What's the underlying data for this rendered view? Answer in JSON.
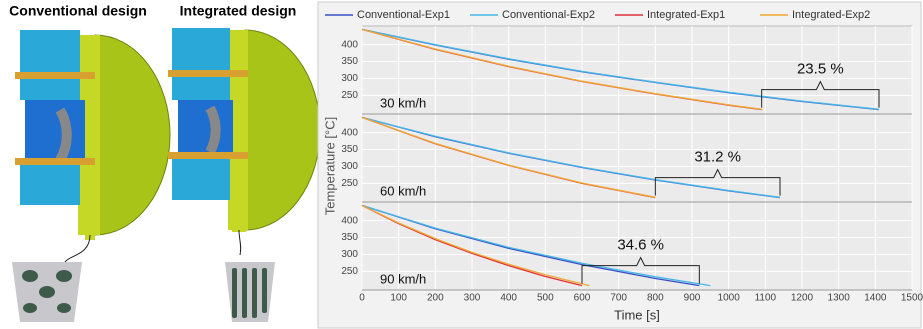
{
  "figure": {
    "titles": [
      "Conventional design",
      "Integrated design"
    ]
  },
  "chart_data": {
    "type": "line",
    "xlabel": "Time [s]",
    "ylabel": "Temperature [°C]",
    "xlim": [
      0,
      1500
    ],
    "xticks": [
      0,
      100,
      200,
      300,
      400,
      500,
      600,
      700,
      800,
      900,
      1000,
      1100,
      1200,
      1300,
      1400,
      1500
    ],
    "ylim": [
      195,
      455
    ],
    "yticks": [
      250,
      300,
      350,
      400
    ],
    "grid": true,
    "series": [
      {
        "name": "Conventional-Exp1",
        "color": "#3a4fc4"
      },
      {
        "name": "Conventional-Exp2",
        "color": "#45b6e8"
      },
      {
        "name": "Integrated-Exp1",
        "color": "#e0303a"
      },
      {
        "name": "Integrated-Exp2",
        "color": "#f0a830"
      }
    ],
    "panels": [
      {
        "label": "30 km/h",
        "annotation": "23.5 %",
        "series": [
          {
            "x": [
              0,
              200,
              400,
              600,
              800,
              1000,
              1200,
              1410
            ],
            "values": [
              445,
              399,
              357,
              320,
              288,
              258,
              232,
              208
            ]
          },
          {
            "x": [
              0,
              200,
              400,
              600,
              800,
              1000,
              1200,
              1410
            ],
            "values": [
              445,
              400,
              358,
              321,
              289,
              259,
              233,
              209
            ]
          },
          {
            "x": [
              0,
              200,
              400,
              600,
              800,
              1000,
              1090
            ],
            "values": [
              445,
              386,
              335,
              291,
              254,
              221,
              208
            ]
          },
          {
            "x": [
              0,
              200,
              400,
              600,
              800,
              1000,
              1090
            ],
            "values": [
              445,
              387,
              336,
              292,
              255,
              222,
              209
            ]
          }
        ]
      },
      {
        "label": "60 km/h",
        "annotation": "31.2 %",
        "series": [
          {
            "x": [
              0,
              200,
              400,
              600,
              800,
              1000,
              1140
            ],
            "values": [
              445,
              388,
              339,
              297,
              260,
              228,
              208
            ]
          },
          {
            "x": [
              0,
              200,
              400,
              600,
              800,
              1000,
              1140
            ],
            "values": [
              445,
              389,
              340,
              298,
              261,
              229,
              209
            ]
          },
          {
            "x": [
              0,
              200,
              400,
              600,
              800
            ],
            "values": [
              445,
              367,
              303,
              250,
              208
            ]
          },
          {
            "x": [
              0,
              200,
              400,
              600,
              800
            ],
            "values": [
              445,
              368,
              304,
              251,
              209
            ]
          }
        ]
      },
      {
        "label": "90 km/h",
        "annotation": "34.6 %",
        "series": [
          {
            "x": [
              0,
              200,
              400,
              600,
              800,
              920
            ],
            "values": [
              445,
              376,
              318,
              270,
              229,
              208
            ]
          },
          {
            "x": [
              0,
              200,
              400,
              600,
              800,
              950
            ],
            "values": [
              445,
              378,
              321,
              274,
              234,
              208
            ]
          },
          {
            "x": [
              0,
              100,
              200,
              300,
              400,
              500,
              600
            ],
            "values": [
              445,
              391,
              344,
              303,
              267,
              235,
              208
            ]
          },
          {
            "x": [
              0,
              100,
              200,
              300,
              400,
              500,
              620
            ],
            "values": [
              445,
              393,
              347,
              306,
              271,
              240,
              208
            ]
          }
        ]
      }
    ]
  }
}
